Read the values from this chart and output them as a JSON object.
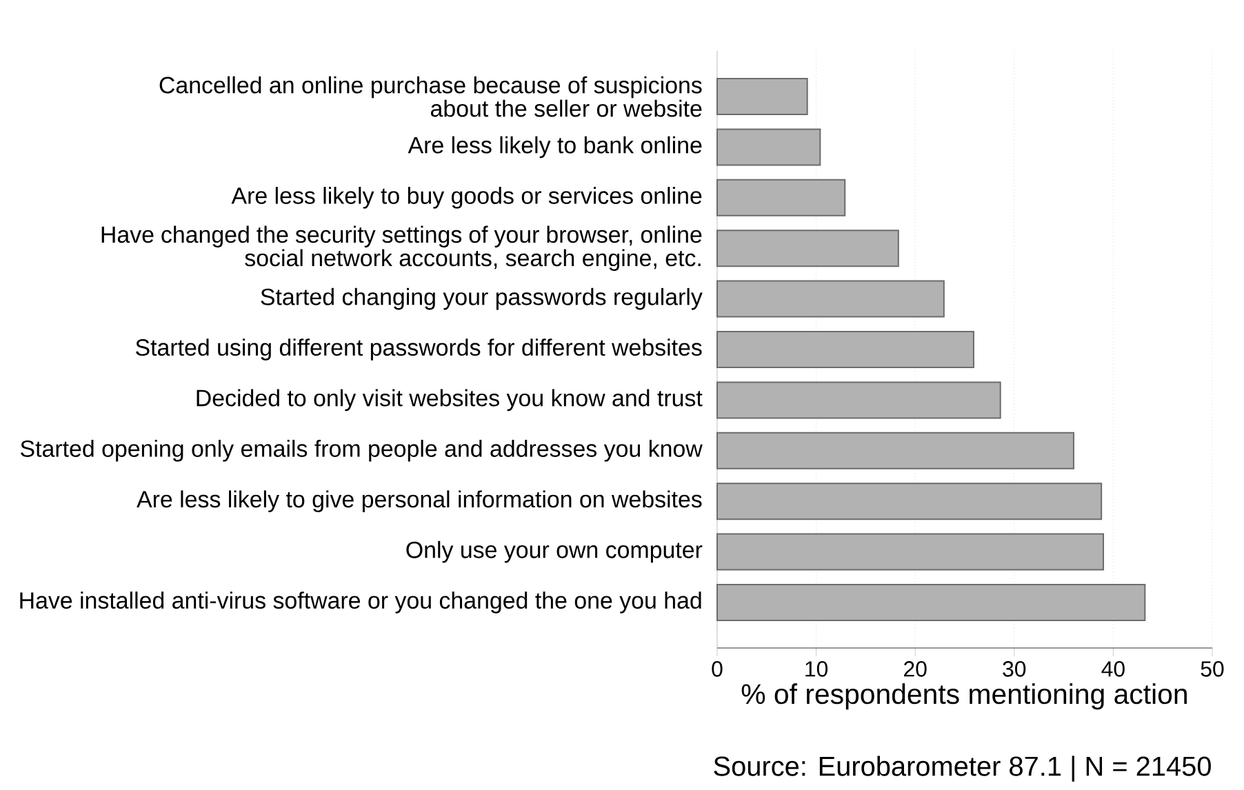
{
  "chart_data": {
    "type": "bar",
    "orientation": "horizontal",
    "categories": [
      "Cancelled an online purchase because of suspicions about the seller or website",
      "Are less likely to bank online",
      "Are less likely to buy goods or services online",
      "Have changed the security settings of your browser, online social network accounts, search engine, etc.",
      "Started changing your passwords regularly",
      "Started using different passwords for different websites",
      "Decided to only visit websites you know and trust",
      "Started opening only emails from people and addresses you know",
      "Are less likely to give personal information on websites",
      "Only use your own computer",
      "Have installed anti-virus software or you changed the one you had"
    ],
    "values": [
      9.1,
      10.4,
      12.9,
      18.3,
      22.9,
      25.9,
      28.6,
      36.0,
      38.8,
      39.0,
      43.2
    ],
    "color": "#b2b2b2",
    "xlabel": "% of respondents mentioning action",
    "xlim": [
      0,
      50
    ],
    "xticks": [
      0,
      10,
      20,
      30,
      40,
      50
    ],
    "grid": "x",
    "annotations": [
      "Source: Eurobarometer 87.1 | N = 21450"
    ]
  }
}
